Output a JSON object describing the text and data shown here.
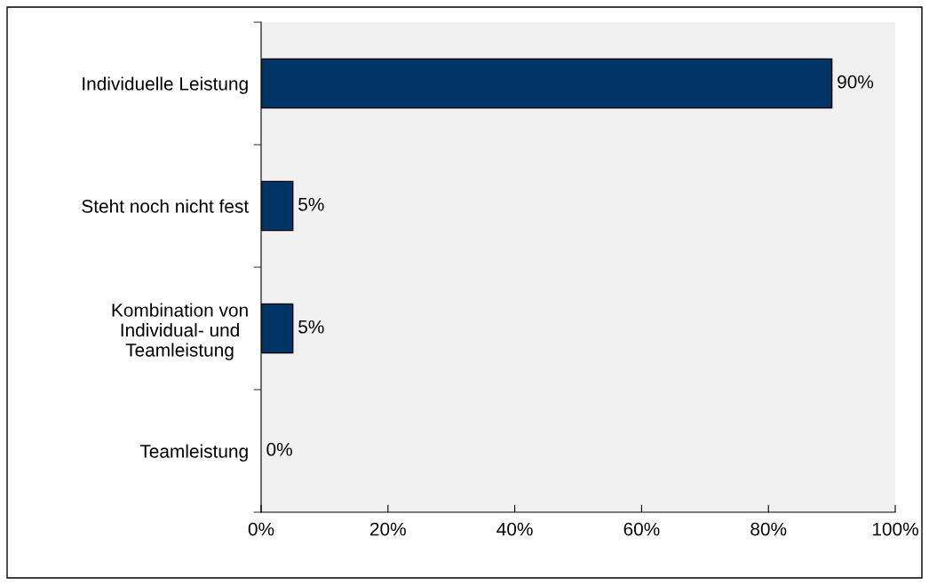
{
  "chart_data": {
    "type": "bar",
    "orientation": "horizontal",
    "categories": [
      "Individuelle Leistung",
      "Steht noch nicht fest",
      "Kombination von\nIndividual- und\nTeamleistung",
      "Teamleistung"
    ],
    "values": [
      90,
      5,
      5,
      0
    ],
    "value_labels": [
      "90%",
      "5%",
      "5%",
      "0%"
    ],
    "color": "#003366",
    "xlim": [
      0,
      100
    ],
    "xticks": [
      {
        "value": 0,
        "label": "0%"
      },
      {
        "value": 20,
        "label": "20%"
      },
      {
        "value": 40,
        "label": "40%"
      },
      {
        "value": 60,
        "label": "60%"
      },
      {
        "value": 80,
        "label": "80%"
      },
      {
        "value": 100,
        "label": "100%"
      }
    ],
    "grid": false,
    "legend": false
  }
}
